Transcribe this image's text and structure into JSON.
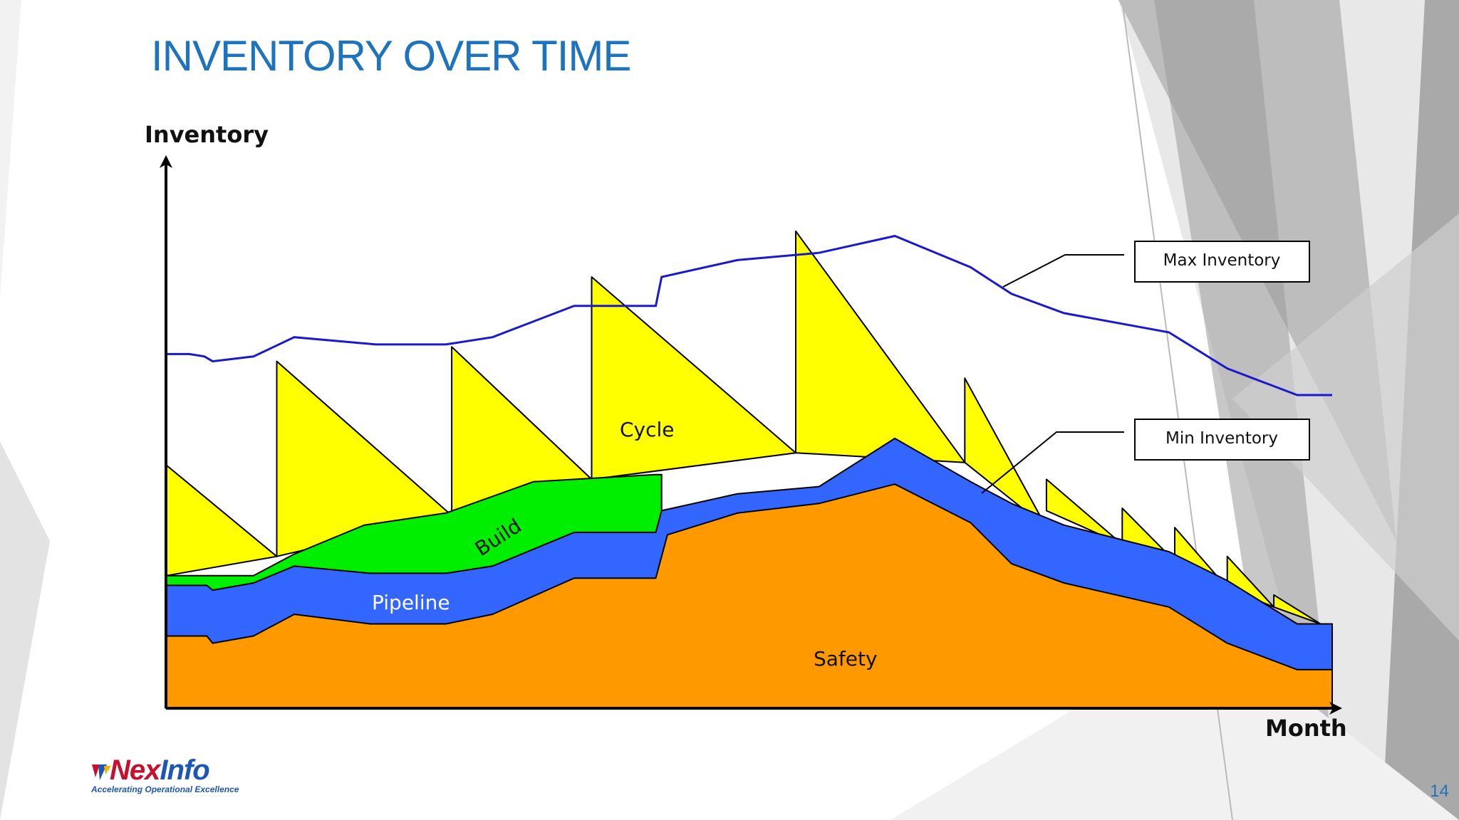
{
  "slide": {
    "title": "INVENTORY OVER TIME",
    "page_number": "14"
  },
  "logo": {
    "name_part1": "Nex",
    "name_part2": "Info",
    "tagline": "Accelerating Operational Excellence"
  },
  "colors": {
    "title": "#1d73be",
    "safety": "#ff9900",
    "pipeline": "#3366ff",
    "build": "#00ee00",
    "cycle": "#ffff00",
    "max_line": "#1a1acc"
  },
  "chart_data": {
    "type": "area",
    "xlabel": "Month",
    "ylabel": "Inventory",
    "xlim": [
      0,
      100
    ],
    "ylim": [
      0,
      100
    ],
    "area_labels": {
      "safety": "Safety",
      "pipeline": "Pipeline",
      "build": "Build",
      "cycle": "Cycle"
    },
    "legend": {
      "max": "Max Inventory",
      "min": "Min Inventory"
    },
    "safety_top": [
      [
        0,
        15
      ],
      [
        3.5,
        15
      ],
      [
        4,
        13.5
      ],
      [
        7.5,
        15
      ],
      [
        11,
        19.5
      ],
      [
        17.5,
        17.5
      ],
      [
        24,
        17.5
      ],
      [
        28,
        19.5
      ],
      [
        35,
        27
      ],
      [
        42,
        27
      ],
      [
        43,
        36
      ],
      [
        49,
        40.5
      ],
      [
        56,
        42.5
      ],
      [
        62.5,
        46.5
      ],
      [
        69,
        38.5
      ],
      [
        72.5,
        30
      ],
      [
        77,
        26
      ],
      [
        86,
        21
      ],
      [
        91,
        13.5
      ],
      [
        97,
        8
      ],
      [
        100,
        8
      ]
    ],
    "pipeline_top": [
      [
        0,
        25.5
      ],
      [
        3.5,
        25.5
      ],
      [
        4,
        24.5
      ],
      [
        7.5,
        26
      ],
      [
        11,
        29.5
      ],
      [
        17.5,
        28
      ],
      [
        24,
        28
      ],
      [
        28,
        29.5
      ],
      [
        35,
        36.5
      ],
      [
        42,
        36.5
      ],
      [
        42.5,
        41
      ],
      [
        49,
        44.5
      ],
      [
        56,
        46
      ],
      [
        62.5,
        56
      ],
      [
        69,
        47
      ],
      [
        72.5,
        42.5
      ],
      [
        77,
        38
      ],
      [
        86,
        32.5
      ],
      [
        91,
        26.5
      ],
      [
        97,
        17.5
      ],
      [
        100,
        17.5
      ]
    ],
    "build_top": [
      [
        0,
        27.5
      ],
      [
        3.5,
        27.5
      ],
      [
        7.5,
        27.5
      ],
      [
        11,
        32
      ],
      [
        17,
        38
      ],
      [
        24,
        40.5
      ],
      [
        31.5,
        47
      ],
      [
        42,
        48.5
      ],
      [
        42.5,
        48.5
      ]
    ],
    "cycle_peaks": [
      {
        "x_start": 0,
        "base_start": 27.5,
        "peak": 50.5,
        "x_end": 9.5,
        "base_end": 31.5
      },
      {
        "x_start": 9.5,
        "base_start": 31.5,
        "peak": 72,
        "x_end": 24.5,
        "base_end": 40
      },
      {
        "x_start": 24.5,
        "base_start": 40,
        "peak": 75,
        "x_end": 36.5,
        "base_end": 47.5
      },
      {
        "x_start": 36.5,
        "base_start": 47.5,
        "peak": 89.5,
        "x_end": 54,
        "base_end": 53
      },
      {
        "x_start": 54,
        "base_start": 53,
        "peak": 99,
        "x_end": 68.5,
        "base_end": 51
      },
      {
        "x_start": 68.5,
        "base_start": 51,
        "peak": 68.5,
        "x_end": 75.5,
        "base_end": 37.5
      },
      {
        "x_start": 75.5,
        "base_start": 41,
        "peak": 47.5,
        "x_end": 82,
        "base_end": 34
      },
      {
        "x_start": 82,
        "base_start": 34,
        "peak": 41.5,
        "x_end": 86.5,
        "base_end": 30.5
      },
      {
        "x_start": 86.5,
        "base_start": 30.5,
        "peak": 37.5,
        "x_end": 91,
        "base_end": 25
      },
      {
        "x_start": 91,
        "base_start": 25,
        "peak": 31.5,
        "x_end": 95,
        "base_end": 21
      },
      {
        "x_start": 95,
        "base_start": 21,
        "peak": 23.5,
        "x_end": 99,
        "base_end": 17.5
      }
    ],
    "max_inventory": [
      [
        0,
        73.5
      ],
      [
        2,
        73.5
      ],
      [
        3.3,
        73
      ],
      [
        4,
        72
      ],
      [
        7.5,
        73
      ],
      [
        11,
        77
      ],
      [
        18,
        75.5
      ],
      [
        24,
        75.5
      ],
      [
        28,
        77
      ],
      [
        35,
        83.5
      ],
      [
        42,
        83.5
      ],
      [
        42.5,
        89.5
      ],
      [
        49,
        93
      ],
      [
        56,
        94.5
      ],
      [
        62.5,
        98
      ],
      [
        69,
        91.5
      ],
      [
        72.5,
        86
      ],
      [
        77,
        82
      ],
      [
        86,
        78
      ],
      [
        91,
        70.5
      ],
      [
        97,
        65
      ],
      [
        100,
        65
      ]
    ]
  }
}
